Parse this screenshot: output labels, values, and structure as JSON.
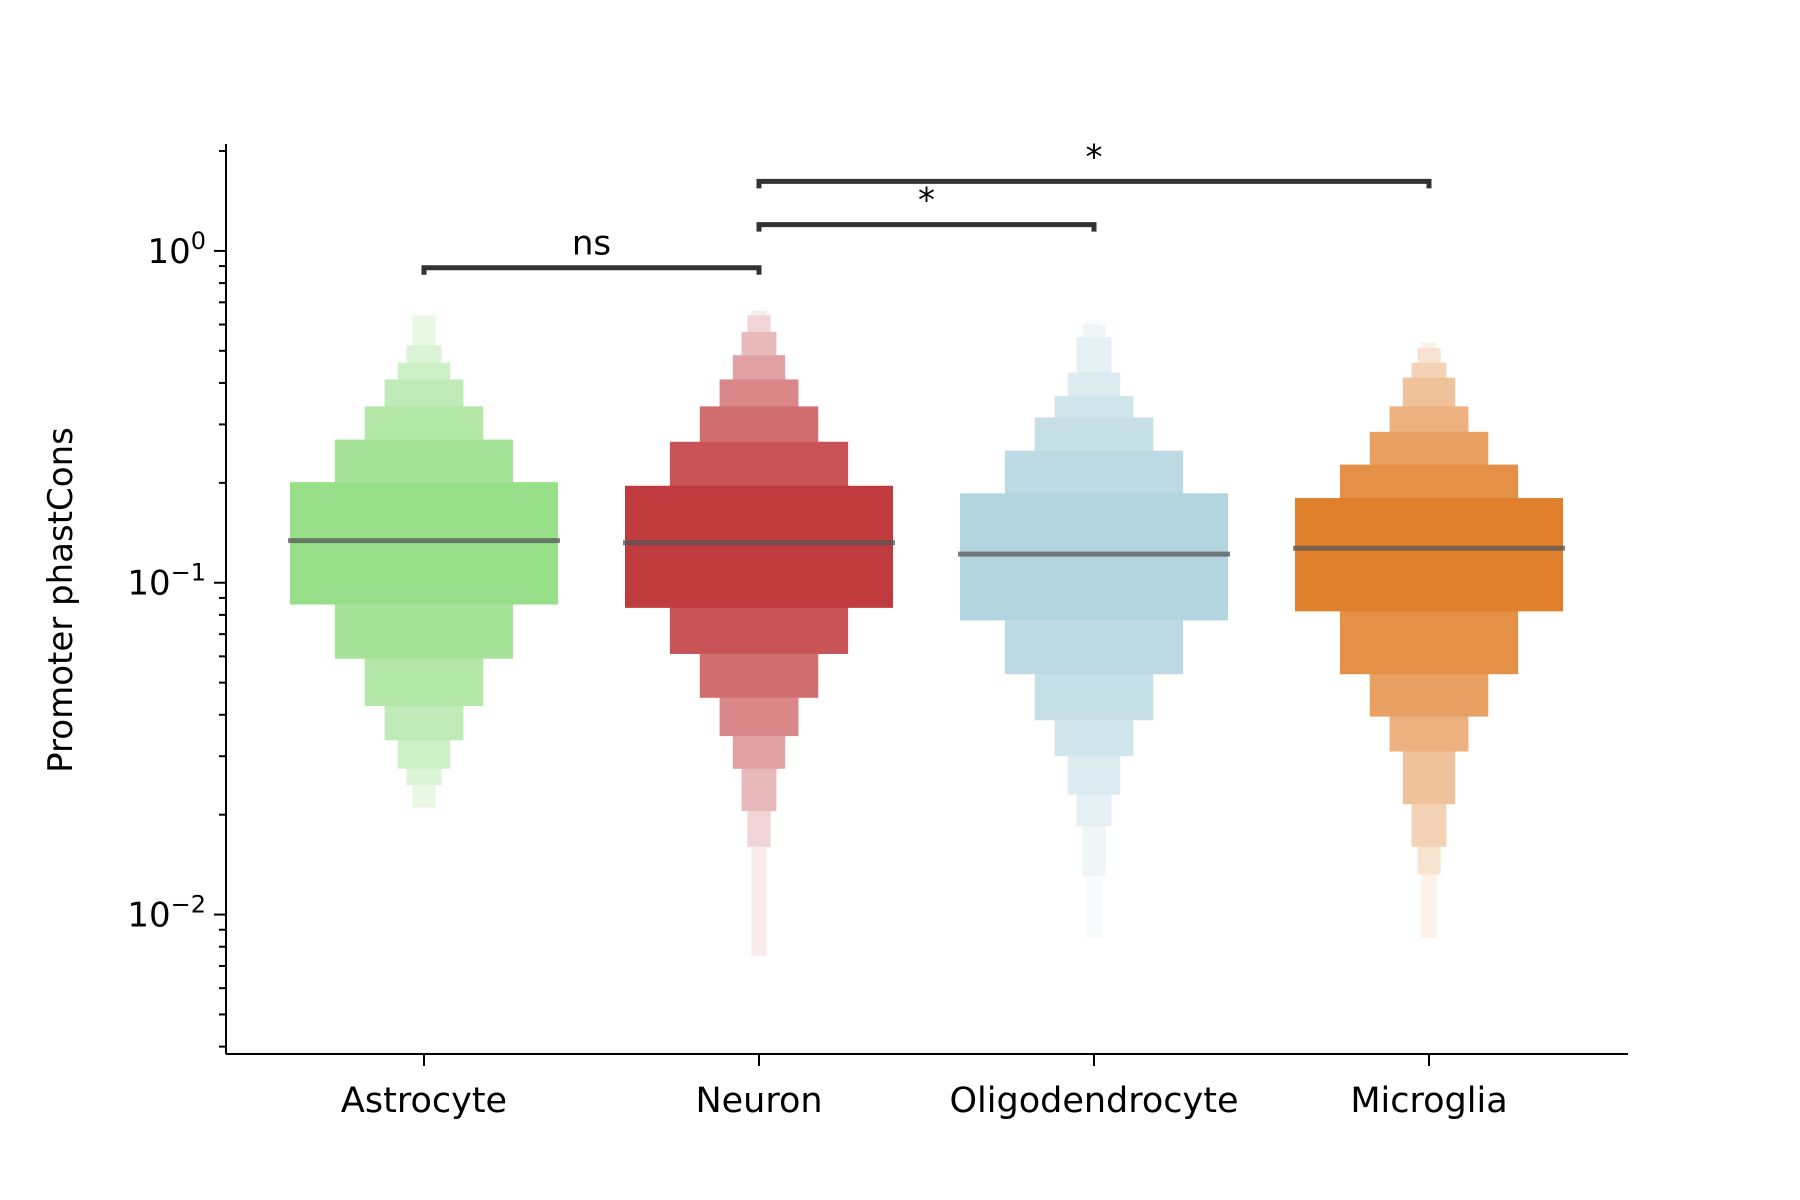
{
  "chart_data": {
    "type": "boxen",
    "ylabel": "Promoter phastCons",
    "yscale": "log",
    "ylim": [
      0.0038,
      2.1
    ],
    "yticks": [
      {
        "value": 1,
        "base": "10",
        "exp": "0"
      },
      {
        "value": 0.1,
        "base": "10",
        "exp": "−1"
      },
      {
        "value": 0.01,
        "base": "10",
        "exp": "−2"
      }
    ],
    "categories": [
      "Astrocyte",
      "Neuron",
      "Oligodendrocyte",
      "Microglia"
    ],
    "series": [
      {
        "category": "Astrocyte",
        "color": "#98df8a",
        "median": 0.134,
        "boxes": [
          {
            "low": 0.086,
            "high": 0.201
          },
          {
            "low": 0.059,
            "high": 0.27
          },
          {
            "low": 0.0425,
            "high": 0.34
          },
          {
            "low": 0.0335,
            "high": 0.41
          },
          {
            "low": 0.0275,
            "high": 0.46
          },
          {
            "low": 0.0245,
            "high": 0.52
          },
          {
            "low": 0.021,
            "high": 0.64
          }
        ]
      },
      {
        "category": "Neuron",
        "color": "#c03b3e",
        "median": 0.132,
        "boxes": [
          {
            "low": 0.084,
            "high": 0.196
          },
          {
            "low": 0.061,
            "high": 0.266
          },
          {
            "low": 0.045,
            "high": 0.34
          },
          {
            "low": 0.0345,
            "high": 0.41
          },
          {
            "low": 0.0275,
            "high": 0.485
          },
          {
            "low": 0.0205,
            "high": 0.57
          },
          {
            "low": 0.016,
            "high": 0.64
          },
          {
            "low": 0.0075,
            "high": 0.66
          }
        ]
      },
      {
        "category": "Oligodendrocyte",
        "color": "#b3d5e0",
        "median": 0.122,
        "boxes": [
          {
            "low": 0.077,
            "high": 0.186
          },
          {
            "low": 0.053,
            "high": 0.25
          },
          {
            "low": 0.0385,
            "high": 0.315
          },
          {
            "low": 0.03,
            "high": 0.365
          },
          {
            "low": 0.023,
            "high": 0.43
          },
          {
            "low": 0.0185,
            "high": 0.55
          },
          {
            "low": 0.013,
            "high": 0.6
          },
          {
            "low": 0.0085,
            "high": 0.62
          }
        ]
      },
      {
        "category": "Microglia",
        "color": "#e07f2c",
        "median": 0.127,
        "boxes": [
          {
            "low": 0.082,
            "high": 0.18
          },
          {
            "low": 0.053,
            "high": 0.227
          },
          {
            "low": 0.0395,
            "high": 0.285
          },
          {
            "low": 0.031,
            "high": 0.34
          },
          {
            "low": 0.0215,
            "high": 0.415
          },
          {
            "low": 0.016,
            "high": 0.46
          },
          {
            "low": 0.0132,
            "high": 0.51
          },
          {
            "low": 0.0085,
            "high": 0.53
          }
        ]
      }
    ],
    "significance": [
      {
        "from": 0,
        "to": 1,
        "label": "ns",
        "y": 0.89
      },
      {
        "from": 1,
        "to": 2,
        "label": "*",
        "y": 1.2
      },
      {
        "from": 1,
        "to": 3,
        "label": "*",
        "y": 1.62
      }
    ]
  }
}
